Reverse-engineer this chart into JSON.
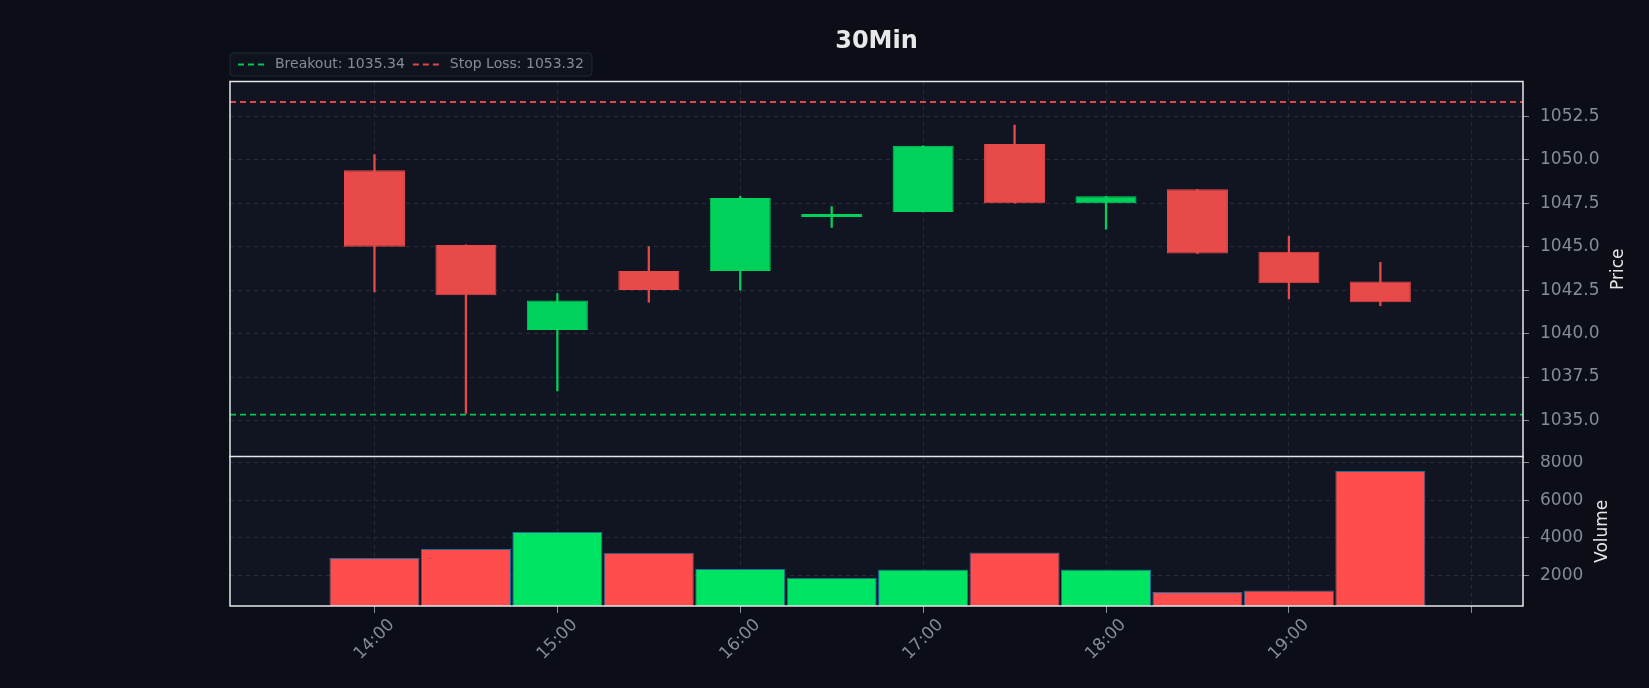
{
  "chart_data": [
    {
      "type": "candlestick",
      "title": "30Min",
      "ylabel": "Price",
      "x": [
        14,
        14.5,
        15,
        15.5,
        16,
        16.5,
        17,
        17.5,
        18,
        18.5,
        19,
        19.5
      ],
      "ohlc": [
        [
          1049.4,
          1050.3,
          1042.4,
          1045.0
        ],
        [
          1045.1,
          1045.1,
          1035.4,
          1042.2
        ],
        [
          1040.2,
          1042.3,
          1036.7,
          1041.9
        ],
        [
          1043.6,
          1045.0,
          1041.8,
          1042.5
        ],
        [
          1043.6,
          1047.9,
          1042.5,
          1047.8
        ],
        [
          1046.7,
          1047.3,
          1046.1,
          1046.8
        ],
        [
          1047.0,
          1050.8,
          1047.0,
          1050.8
        ],
        [
          1050.9,
          1052.0,
          1047.5,
          1047.5
        ],
        [
          1047.5,
          1047.9,
          1046.0,
          1047.9
        ],
        [
          1048.3,
          1048.3,
          1044.6,
          1044.6
        ],
        [
          1044.7,
          1045.6,
          1042.0,
          1042.9
        ],
        [
          1043.0,
          1044.1,
          1041.6,
          1041.8
        ]
      ],
      "colors": [
        "#e84a4a",
        "#e84a4a",
        "#00d15b",
        "#e84a4a",
        "#00d15b",
        "#00d15b",
        "#00d15b",
        "#e84a4a",
        "#00d15b",
        "#e84a4a",
        "#e84a4a",
        "#e84a4a"
      ],
      "xlim": [
        13.21,
        20.28
      ],
      "xticks": [
        14,
        15,
        16,
        17,
        18,
        19,
        20
      ],
      "ylim": [
        1032.9,
        1054.5
      ],
      "yticks": [
        {
          "value": 1035,
          "label": "1035.0"
        },
        1037.5,
        {
          "value": 1040,
          "label": "1040.0"
        },
        1042.5,
        {
          "value": 1045,
          "label": "1045.0"
        },
        1047.5,
        {
          "value": 1050,
          "label": "1050.0"
        },
        1052.5
      ],
      "ref_lines": [
        {
          "axis": "y",
          "value": 1035.34,
          "label": "Breakout: 1035.34",
          "color": "#00c853",
          "line_style": "dashed"
        },
        {
          "axis": "y",
          "value": 1053.32,
          "label": "Stop Loss: 1053.32",
          "color": "#e0474c",
          "line_style": "dashed"
        }
      ],
      "legend": "top left",
      "grid": true,
      "tick_labels": "y"
    },
    {
      "type": "bar",
      "ylabel": "Volume",
      "x": [
        14,
        14.5,
        15,
        15.5,
        16,
        16.5,
        17,
        17.5,
        18,
        18.5,
        19,
        19.5
      ],
      "values": [
        2920,
        3400,
        4300,
        3200,
        2330,
        1870,
        2300,
        3210,
        2300,
        1110,
        1190,
        7550
      ],
      "colors": [
        "#ff4d4d",
        "#ff4d4d",
        "#00e463",
        "#ff4d4d",
        "#00e463",
        "#00e463",
        "#00e463",
        "#ff4d4d",
        "#00e463",
        "#ff4d4d",
        "#ff4d4d",
        "#ff4d4d"
      ],
      "xlim": [
        13.21,
        20.28
      ],
      "xticks": [
        {
          "value": 14,
          "label": "14:00"
        },
        {
          "value": 15,
          "label": "15:00"
        },
        {
          "value": 16,
          "label": "16:00"
        },
        {
          "value": 17,
          "label": "17:00"
        },
        {
          "value": 18,
          "label": "18:00"
        },
        {
          "value": 19,
          "label": "19:00"
        },
        {
          "value": 20,
          "label": null
        }
      ],
      "ylim": [
        360,
        8320
      ],
      "yticks": [
        2000,
        4000,
        6000,
        8000
      ],
      "grid": true
    }
  ]
}
